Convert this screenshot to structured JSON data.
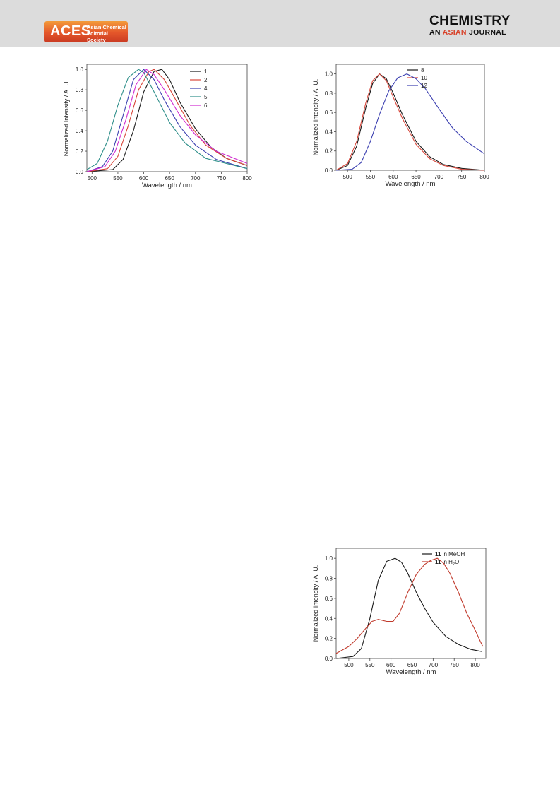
{
  "header": {
    "aces_label": "ACES",
    "aces_sub_1": "Asian Chemical",
    "aces_sub_2": "Editorial Society",
    "journal_title": "CHEMISTRY",
    "journal_sub_pre": "AN ",
    "journal_sub_accent": "ASIAN",
    "journal_sub_post": " JOURNAL"
  },
  "chart_data": [
    {
      "type": "line",
      "xlabel": "Wavelength / nm",
      "ylabel": "Normalized Intensity / A. U.",
      "xlim": [
        490,
        800
      ],
      "ylim": [
        0,
        1.05
      ],
      "xticks": [
        500,
        550,
        600,
        650,
        700,
        750,
        800
      ],
      "yticks": [
        0.0,
        0.2,
        0.4,
        0.6,
        0.8,
        1.0
      ],
      "legend": "top-right",
      "series": [
        {
          "name": "1",
          "color": "#1a1a1a",
          "x": [
            490,
            540,
            560,
            580,
            600,
            620,
            635,
            650,
            670,
            700,
            730,
            760,
            800
          ],
          "y": [
            0.0,
            0.02,
            0.12,
            0.4,
            0.78,
            0.98,
            1.0,
            0.9,
            0.68,
            0.42,
            0.24,
            0.13,
            0.06
          ]
        },
        {
          "name": "2",
          "color": "#d8463a",
          "x": [
            490,
            530,
            550,
            570,
            590,
            610,
            620,
            640,
            660,
            690,
            720,
            760,
            800
          ],
          "y": [
            0.0,
            0.03,
            0.15,
            0.45,
            0.8,
            0.98,
            1.0,
            0.9,
            0.72,
            0.45,
            0.26,
            0.13,
            0.06
          ]
        },
        {
          "name": "4",
          "color": "#3b3fb0",
          "x": [
            490,
            520,
            540,
            560,
            580,
            600,
            620,
            640,
            670,
            700,
            740,
            800
          ],
          "y": [
            0.0,
            0.05,
            0.2,
            0.55,
            0.9,
            1.0,
            0.9,
            0.7,
            0.44,
            0.26,
            0.12,
            0.03
          ]
        },
        {
          "name": "5",
          "color": "#2f8f8a",
          "x": [
            490,
            510,
            530,
            550,
            570,
            590,
            600,
            620,
            650,
            680,
            720,
            800
          ],
          "y": [
            0.02,
            0.08,
            0.3,
            0.65,
            0.92,
            1.0,
            0.97,
            0.78,
            0.48,
            0.28,
            0.13,
            0.03
          ]
        },
        {
          "name": "6",
          "color": "#d02ad0",
          "x": [
            490,
            525,
            545,
            565,
            585,
            605,
            620,
            640,
            670,
            700,
            740,
            800
          ],
          "y": [
            0.0,
            0.05,
            0.2,
            0.5,
            0.85,
            1.0,
            0.95,
            0.8,
            0.55,
            0.36,
            0.2,
            0.08
          ]
        }
      ]
    },
    {
      "type": "line",
      "xlabel": "Wavelength / nm",
      "ylabel": "Normalized Intensity / A. U.",
      "xlim": [
        475,
        800
      ],
      "ylim": [
        0,
        1.1
      ],
      "xticks": [
        500,
        550,
        600,
        650,
        700,
        750,
        800
      ],
      "yticks": [
        0.0,
        0.2,
        0.4,
        0.6,
        0.8,
        1.0
      ],
      "legend": "top-right",
      "series": [
        {
          "name": "8",
          "color": "#1a1a1a",
          "x": [
            475,
            500,
            520,
            540,
            555,
            570,
            585,
            600,
            620,
            650,
            680,
            710,
            750,
            800
          ],
          "y": [
            0.0,
            0.05,
            0.25,
            0.65,
            0.9,
            1.0,
            0.95,
            0.8,
            0.58,
            0.3,
            0.14,
            0.06,
            0.02,
            0.0
          ]
        },
        {
          "name": "10",
          "color": "#d8463a",
          "x": [
            475,
            500,
            520,
            540,
            555,
            570,
            585,
            600,
            620,
            650,
            680,
            710,
            750,
            800
          ],
          "y": [
            0.0,
            0.07,
            0.3,
            0.7,
            0.93,
            1.0,
            0.93,
            0.76,
            0.54,
            0.27,
            0.12,
            0.05,
            0.01,
            0.0
          ]
        },
        {
          "name": "12",
          "color": "#3b3fb0",
          "x": [
            475,
            510,
            530,
            550,
            570,
            590,
            610,
            630,
            650,
            670,
            700,
            730,
            760,
            800
          ],
          "y": [
            0.0,
            0.01,
            0.08,
            0.3,
            0.58,
            0.82,
            0.96,
            1.0,
            0.95,
            0.85,
            0.64,
            0.44,
            0.3,
            0.17
          ]
        }
      ]
    },
    {
      "type": "line",
      "xlabel": "Wavelength / nm",
      "ylabel": "Normalized Intensity / A. U.",
      "xlim": [
        470,
        825
      ],
      "ylim": [
        0,
        1.1
      ],
      "xticks": [
        500,
        550,
        600,
        650,
        700,
        750,
        800
      ],
      "yticks": [
        0.0,
        0.2,
        0.4,
        0.6,
        0.8,
        1.0
      ],
      "legend": "top-right",
      "series": [
        {
          "name": "11 in MeOH",
          "name_bold": "11",
          "name_rest": " in MeOH",
          "color": "#1a1a1a",
          "x": [
            470,
            510,
            530,
            550,
            570,
            590,
            610,
            625,
            640,
            660,
            680,
            700,
            730,
            760,
            790,
            815
          ],
          "y": [
            0.0,
            0.02,
            0.1,
            0.4,
            0.78,
            0.97,
            1.0,
            0.96,
            0.85,
            0.66,
            0.5,
            0.36,
            0.22,
            0.14,
            0.09,
            0.07
          ]
        },
        {
          "name": "11 in H2O",
          "name_bold": "11",
          "name_rest": " in H",
          "name_sub": "2",
          "name_post": "O",
          "color": "#c0392b",
          "x": [
            470,
            500,
            520,
            540,
            555,
            570,
            590,
            605,
            620,
            640,
            660,
            680,
            695,
            710,
            725,
            740,
            760,
            780,
            800,
            812,
            818
          ],
          "y": [
            0.05,
            0.12,
            0.2,
            0.3,
            0.37,
            0.39,
            0.37,
            0.37,
            0.45,
            0.66,
            0.84,
            0.94,
            0.98,
            1.0,
            0.95,
            0.85,
            0.66,
            0.45,
            0.28,
            0.17,
            0.12
          ]
        }
      ]
    }
  ]
}
